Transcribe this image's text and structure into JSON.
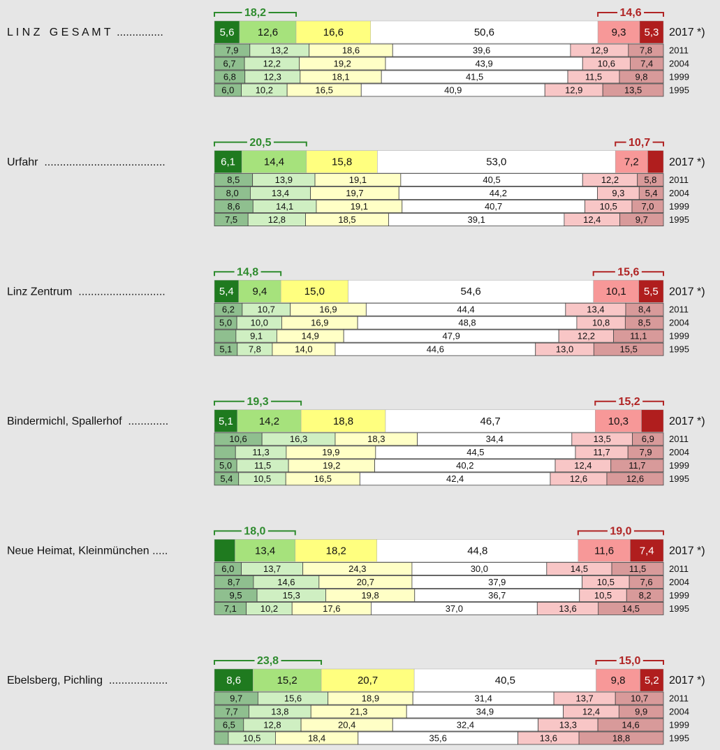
{
  "chart_data": {
    "type": "stacked_bar_groups",
    "current_colors": [
      "#1f7a1f",
      "#a6e27c",
      "#ffff7f",
      "#ffffff",
      "#f79898",
      "#b01e1e"
    ],
    "past_colors": [
      "#8fbf8f",
      "#cfefc2",
      "#ffffc6",
      "#ffffff",
      "#f8c6c6",
      "#d89a9a"
    ],
    "label_colors_current": [
      "#ffffff",
      "#111111",
      "#111111",
      "#111111",
      "#111111",
      "#ffffff"
    ],
    "xlim": [
      0,
      100
    ],
    "groups": [
      {
        "label": "L I N Z   G E S A M T  ...............",
        "left_sum": {
          "value": 18.2,
          "label": "18,2"
        },
        "right_sum": {
          "value": 14.6,
          "label": "14,6"
        },
        "rows": [
          {
            "year": "2017 *)",
            "values": [
              5.6,
              12.6,
              16.6,
              50.6,
              9.3,
              5.3
            ],
            "value_labels": [
              "5,6",
              "12,6",
              "16,6",
              "50,6",
              "9,3",
              "5,3"
            ]
          },
          {
            "year": "2011",
            "values": [
              7.9,
              13.2,
              18.6,
              39.6,
              12.9,
              7.8
            ],
            "value_labels": [
              "7,9",
              "13,2",
              "18,6",
              "39,6",
              "12,9",
              "7,8"
            ]
          },
          {
            "year": "2004",
            "values": [
              6.7,
              12.2,
              19.2,
              43.9,
              10.6,
              7.4
            ],
            "value_labels": [
              "6,7",
              "12,2",
              "19,2",
              "43,9",
              "10,6",
              "7,4"
            ]
          },
          {
            "year": "1999",
            "values": [
              6.8,
              12.3,
              18.1,
              41.5,
              11.5,
              9.8
            ],
            "value_labels": [
              "6,8",
              "12,3",
              "18,1",
              "41,5",
              "11,5",
              "9,8"
            ]
          },
          {
            "year": "1995",
            "values": [
              6.0,
              10.2,
              16.5,
              40.9,
              12.9,
              13.5
            ],
            "value_labels": [
              "6,0",
              "10,2",
              "16,5",
              "40,9",
              "12,9",
              "13,5"
            ]
          }
        ]
      },
      {
        "label": "Urfahr  .......................................",
        "left_sum": {
          "value": 20.5,
          "label": "20,5"
        },
        "right_sum": {
          "value": 10.7,
          "label": "10,7"
        },
        "rows": [
          {
            "year": "2017 *)",
            "values": [
              6.1,
              14.4,
              15.8,
              53.0,
              7.2,
              3.5
            ],
            "value_labels": [
              "6,1",
              "14,4",
              "15,8",
              "53,0",
              "7,2",
              null
            ]
          },
          {
            "year": "2011",
            "values": [
              8.5,
              13.9,
              19.1,
              40.5,
              12.2,
              5.8
            ],
            "value_labels": [
              "8,5",
              "13,9",
              "19,1",
              "40,5",
              "12,2",
              "5,8"
            ]
          },
          {
            "year": "2004",
            "values": [
              8.0,
              13.4,
              19.7,
              44.2,
              9.3,
              5.4
            ],
            "value_labels": [
              "8,0",
              "13,4",
              "19,7",
              "44,2",
              "9,3",
              "5,4"
            ]
          },
          {
            "year": "1999",
            "values": [
              8.6,
              14.1,
              19.1,
              40.7,
              10.5,
              7.0
            ],
            "value_labels": [
              "8,6",
              "14,1",
              "19,1",
              "40,7",
              "10,5",
              "7,0"
            ]
          },
          {
            "year": "1995",
            "values": [
              7.5,
              12.8,
              18.5,
              39.1,
              12.4,
              9.7
            ],
            "value_labels": [
              "7,5",
              "12,8",
              "18,5",
              "39,1",
              "12,4",
              "9,7"
            ]
          }
        ]
      },
      {
        "label": "Linz Zentrum  ............................",
        "left_sum": {
          "value": 14.8,
          "label": "14,8"
        },
        "right_sum": {
          "value": 15.6,
          "label": "15,6"
        },
        "rows": [
          {
            "year": "2017 *)",
            "values": [
              5.4,
              9.4,
              15.0,
              54.6,
              10.1,
              5.5
            ],
            "value_labels": [
              "5,4",
              "9,4",
              "15,0",
              "54,6",
              "10,1",
              "5,5"
            ]
          },
          {
            "year": "2011",
            "values": [
              6.2,
              10.7,
              16.9,
              44.4,
              13.4,
              8.4
            ],
            "value_labels": [
              "6,2",
              "10,7",
              "16,9",
              "44,4",
              "13,4",
              "8,4"
            ]
          },
          {
            "year": "2004",
            "values": [
              5.0,
              10.0,
              16.9,
              48.8,
              10.8,
              8.5
            ],
            "value_labels": [
              "5,0",
              "10,0",
              "16,9",
              "48,8",
              "10,8",
              "8,5"
            ]
          },
          {
            "year": "1999",
            "values": [
              4.8,
              9.1,
              14.9,
              47.9,
              12.2,
              11.1
            ],
            "value_labels": [
              null,
              "9,1",
              "14,9",
              "47,9",
              "12,2",
              "11,1"
            ]
          },
          {
            "year": "1995",
            "values": [
              5.1,
              7.8,
              14.0,
              44.6,
              13.0,
              15.5
            ],
            "value_labels": [
              "5,1",
              "7,8",
              "14,0",
              "44,6",
              "13,0",
              "15,5"
            ]
          }
        ]
      },
      {
        "label": "Bindermichl, Spallerhof  .............",
        "left_sum": {
          "value": 19.3,
          "label": "19,3"
        },
        "right_sum": {
          "value": 15.2,
          "label": "15,2"
        },
        "rows": [
          {
            "year": "2017 *)",
            "values": [
              5.1,
              14.2,
              18.8,
              46.7,
              10.3,
              4.9
            ],
            "value_labels": [
              "5,1",
              "14,2",
              "18,8",
              "46,7",
              "10,3",
              null
            ]
          },
          {
            "year": "2011",
            "values": [
              10.6,
              16.3,
              18.3,
              34.4,
              13.5,
              6.9
            ],
            "value_labels": [
              "10,6",
              "16,3",
              "18,3",
              "34,4",
              "13,5",
              "6,9"
            ]
          },
          {
            "year": "2004",
            "values": [
              4.7,
              11.3,
              19.9,
              44.5,
              11.7,
              7.9
            ],
            "value_labels": [
              null,
              "11,3",
              "19,9",
              "44,5",
              "11,7",
              "7,9"
            ]
          },
          {
            "year": "1999",
            "values": [
              5.0,
              11.5,
              19.2,
              40.2,
              12.4,
              11.7
            ],
            "value_labels": [
              "5,0",
              "11,5",
              "19,2",
              "40,2",
              "12,4",
              "11,7"
            ]
          },
          {
            "year": "1995",
            "values": [
              5.4,
              10.5,
              16.5,
              42.4,
              12.6,
              12.6
            ],
            "value_labels": [
              "5,4",
              "10,5",
              "16,5",
              "42,4",
              "12,6",
              "12,6"
            ]
          }
        ]
      },
      {
        "label": "Neue Heimat, Kleinmünchen .....",
        "left_sum": {
          "value": 18.0,
          "label": "18,0"
        },
        "right_sum": {
          "value": 19.0,
          "label": "19,0"
        },
        "rows": [
          {
            "year": "2017 *)",
            "values": [
              4.6,
              13.4,
              18.2,
              44.8,
              11.6,
              7.4
            ],
            "value_labels": [
              null,
              "13,4",
              "18,2",
              "44,8",
              "11,6",
              "7,4"
            ]
          },
          {
            "year": "2011",
            "values": [
              6.0,
              13.7,
              24.3,
              30.0,
              14.5,
              11.5
            ],
            "value_labels": [
              "6,0",
              "13,7",
              "24,3",
              "30,0",
              "14,5",
              "11,5"
            ]
          },
          {
            "year": "2004",
            "values": [
              8.7,
              14.6,
              20.7,
              37.9,
              10.5,
              7.6
            ],
            "value_labels": [
              "8,7",
              "14,6",
              "20,7",
              "37,9",
              "10,5",
              "7,6"
            ]
          },
          {
            "year": "1999",
            "values": [
              9.5,
              15.3,
              19.8,
              36.7,
              10.5,
              8.2
            ],
            "value_labels": [
              "9,5",
              "15,3",
              "19,8",
              "36,7",
              "10,5",
              "8,2"
            ]
          },
          {
            "year": "1995",
            "values": [
              7.1,
              10.2,
              17.6,
              37.0,
              13.6,
              14.5
            ],
            "value_labels": [
              "7,1",
              "10,2",
              "17,6",
              "37,0",
              "13,6",
              "14,5"
            ]
          }
        ]
      },
      {
        "label": "Ebelsberg, Pichling  ...................",
        "left_sum": {
          "value": 23.8,
          "label": "23,8"
        },
        "right_sum": {
          "value": 15.0,
          "label": "15,0"
        },
        "rows": [
          {
            "year": "2017 *)",
            "values": [
              8.6,
              15.2,
              20.7,
              40.5,
              9.8,
              5.2
            ],
            "value_labels": [
              "8,6",
              "15,2",
              "20,7",
              "40,5",
              "9,8",
              "5,2"
            ]
          },
          {
            "year": "2011",
            "values": [
              9.7,
              15.6,
              18.9,
              31.4,
              13.7,
              10.7
            ],
            "value_labels": [
              "9,7",
              "15,6",
              "18,9",
              "31,4",
              "13,7",
              "10,7"
            ]
          },
          {
            "year": "2004",
            "values": [
              7.7,
              13.8,
              21.3,
              34.9,
              12.4,
              9.9
            ],
            "value_labels": [
              "7,7",
              "13,8",
              "21,3",
              "34,9",
              "12,4",
              "9,9"
            ]
          },
          {
            "year": "1999",
            "values": [
              6.5,
              12.8,
              20.4,
              32.4,
              13.3,
              14.6
            ],
            "value_labels": [
              "6,5",
              "12,8",
              "20,4",
              "32,4",
              "13,3",
              "14,6"
            ]
          },
          {
            "year": "1995",
            "values": [
              3.1,
              10.5,
              18.4,
              35.6,
              13.6,
              18.8
            ],
            "value_labels": [
              null,
              "10,5",
              "18,4",
              "35,6",
              "13,6",
              "18,8"
            ]
          }
        ]
      }
    ]
  }
}
